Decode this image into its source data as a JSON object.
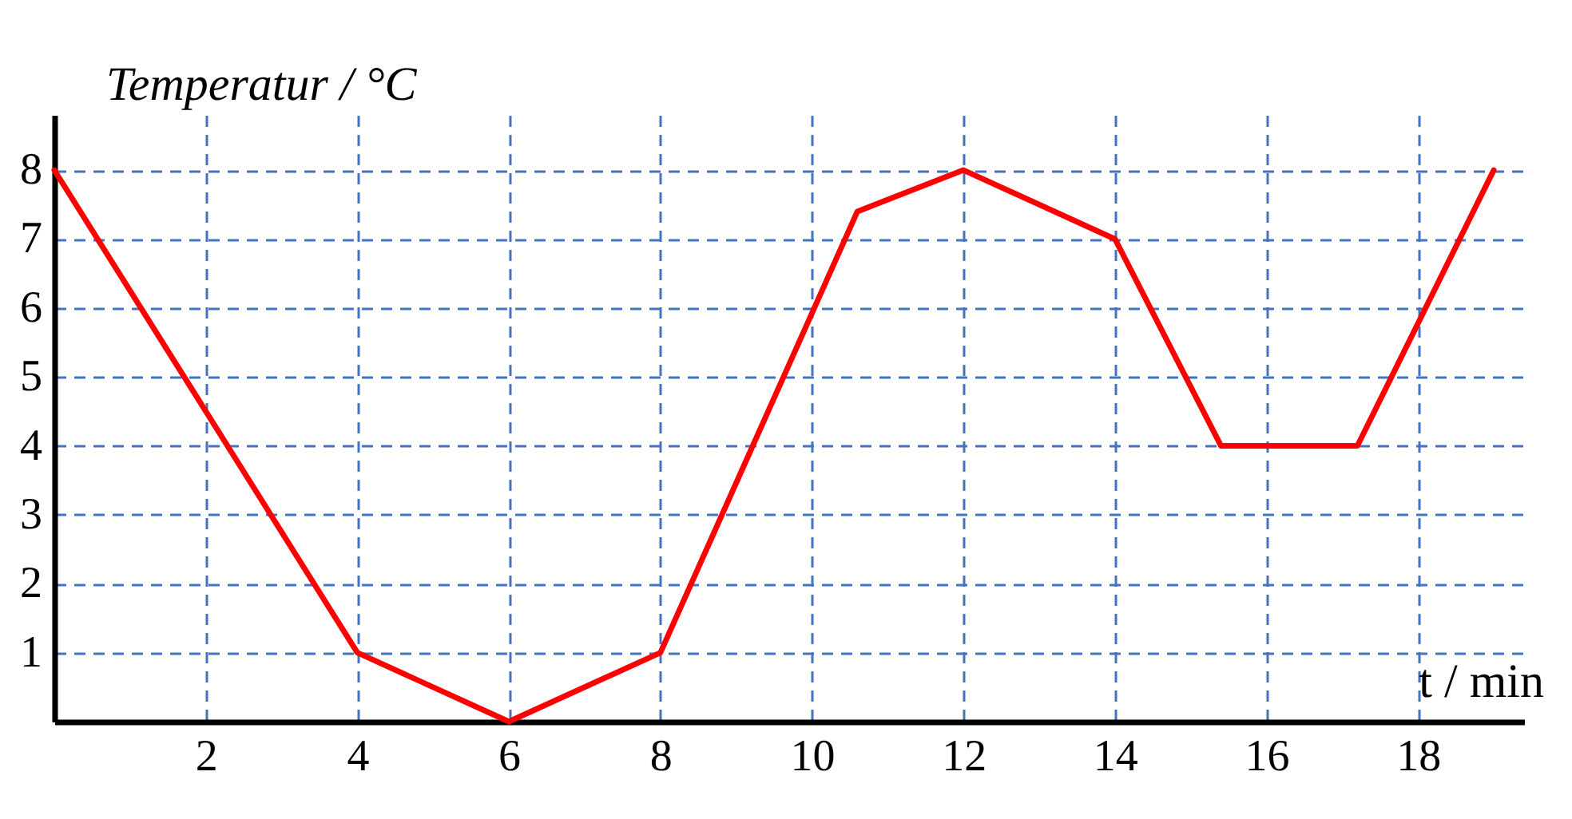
{
  "chart_data": {
    "type": "line",
    "xlabel": "t / min",
    "ylabel": "Temperatur / °C",
    "x": [
      0,
      4,
      6,
      8,
      10.6,
      12,
      14,
      15.4,
      17.2,
      19
    ],
    "series": [
      {
        "color": "#ff0000",
        "values": [
          8,
          1,
          0,
          1,
          7.4,
          8,
          7,
          4,
          4,
          8
        ]
      }
    ],
    "xlim": [
      0,
      19.4
    ],
    "ylim": [
      0,
      8.8
    ],
    "xticks": [
      2,
      4,
      6,
      8,
      10,
      12,
      14,
      16,
      18
    ],
    "yticks": [
      1,
      2,
      3,
      4,
      5,
      6,
      7,
      8
    ],
    "grid": true,
    "marker": "none",
    "line_style": "solid"
  }
}
